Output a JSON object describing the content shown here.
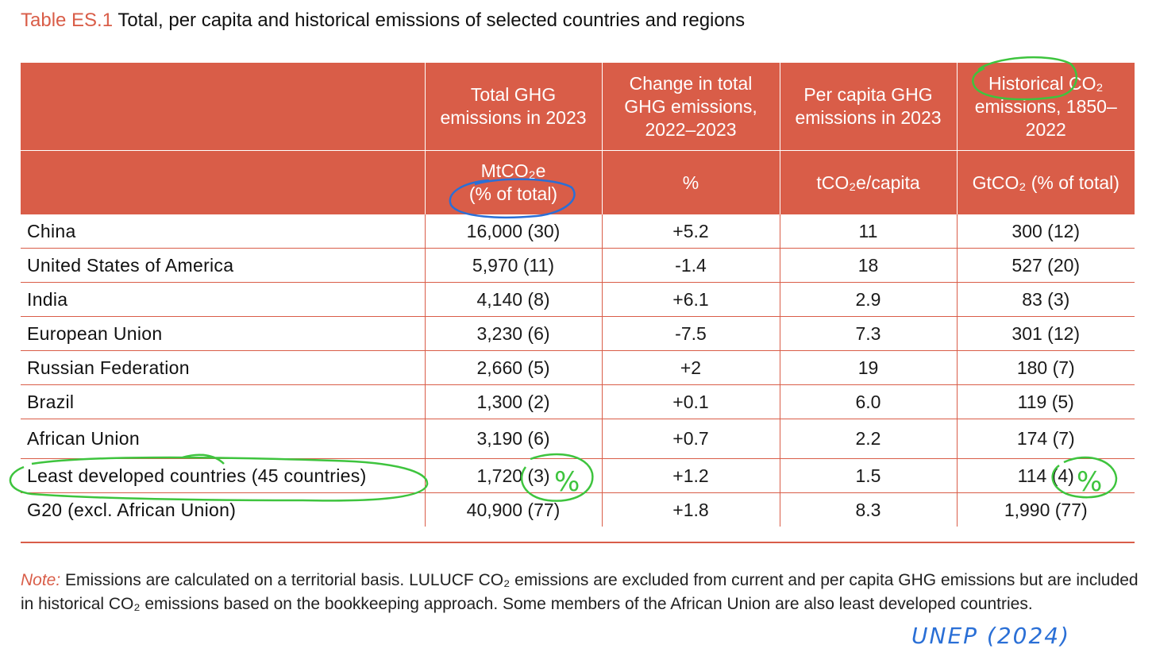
{
  "title": {
    "label": "Table ES.1",
    "text": "Total, per capita and historical emissions of selected countries and regions"
  },
  "headers": {
    "total_ghg": "Total GHG emissions in 2023",
    "change": "Change in total GHG emissions, 2022–2023",
    "per_capita": "Per capita GHG emissions in 2023",
    "historical": "Historical CO₂ emissions, 1850–2022"
  },
  "units": {
    "total_ghg_line1": "MtCO₂e",
    "total_ghg_line2": "(% of total)",
    "change": "%",
    "per_capita": "tCO₂e/capita",
    "historical": "GtCO₂ (% of total)"
  },
  "rows": [
    {
      "name": "China",
      "total": "16,000 (30)",
      "change": "+5.2",
      "per_capita": "11",
      "historical": "300 (12)"
    },
    {
      "name": "United States of America",
      "total": "5,970 (11)",
      "change": "-1.4",
      "per_capita": "18",
      "historical": "527 (20)"
    },
    {
      "name": "India",
      "total": "4,140 (8)",
      "change": "+6.1",
      "per_capita": "2.9",
      "historical": "83 (3)"
    },
    {
      "name": "European Union",
      "total": "3,230 (6)",
      "change": "-7.5",
      "per_capita": "7.3",
      "historical": "301 (12)"
    },
    {
      "name": "Russian Federation",
      "total": "2,660 (5)",
      "change": "+2",
      "per_capita": "19",
      "historical": "180 (7)"
    },
    {
      "name": "Brazil",
      "total": "1,300 (2)",
      "change": "+0.1",
      "per_capita": "6.0",
      "historical": "119 (5)"
    },
    {
      "name": "African Union",
      "total": "3,190 (6)",
      "change": "+0.7",
      "per_capita": "2.2",
      "historical": "174 (7)"
    },
    {
      "name": "Least developed countries (45 countries)",
      "total": "1,720 (3)",
      "change": "+1.2",
      "per_capita": "1.5",
      "historical": "114 (4)"
    },
    {
      "name": "G20 (excl. African Union)",
      "total": "40,900 (77)",
      "change": "+1.8",
      "per_capita": "8.3",
      "historical": "1,990 (77)"
    }
  ],
  "note": {
    "label": "Note:",
    "text": "Emissions are calculated on a territorial basis. LULUCF CO₂ emissions are excluded from current and per capita GHG emissions but are included in historical CO₂ emissions based on the bookkeeping approach. Some members of the African Union are also least developed countries."
  },
  "annotations": {
    "percent_mark": "%",
    "credit": "UNEP (2024)",
    "green": "#3ec43e",
    "blue": "#2a6fd6"
  }
}
